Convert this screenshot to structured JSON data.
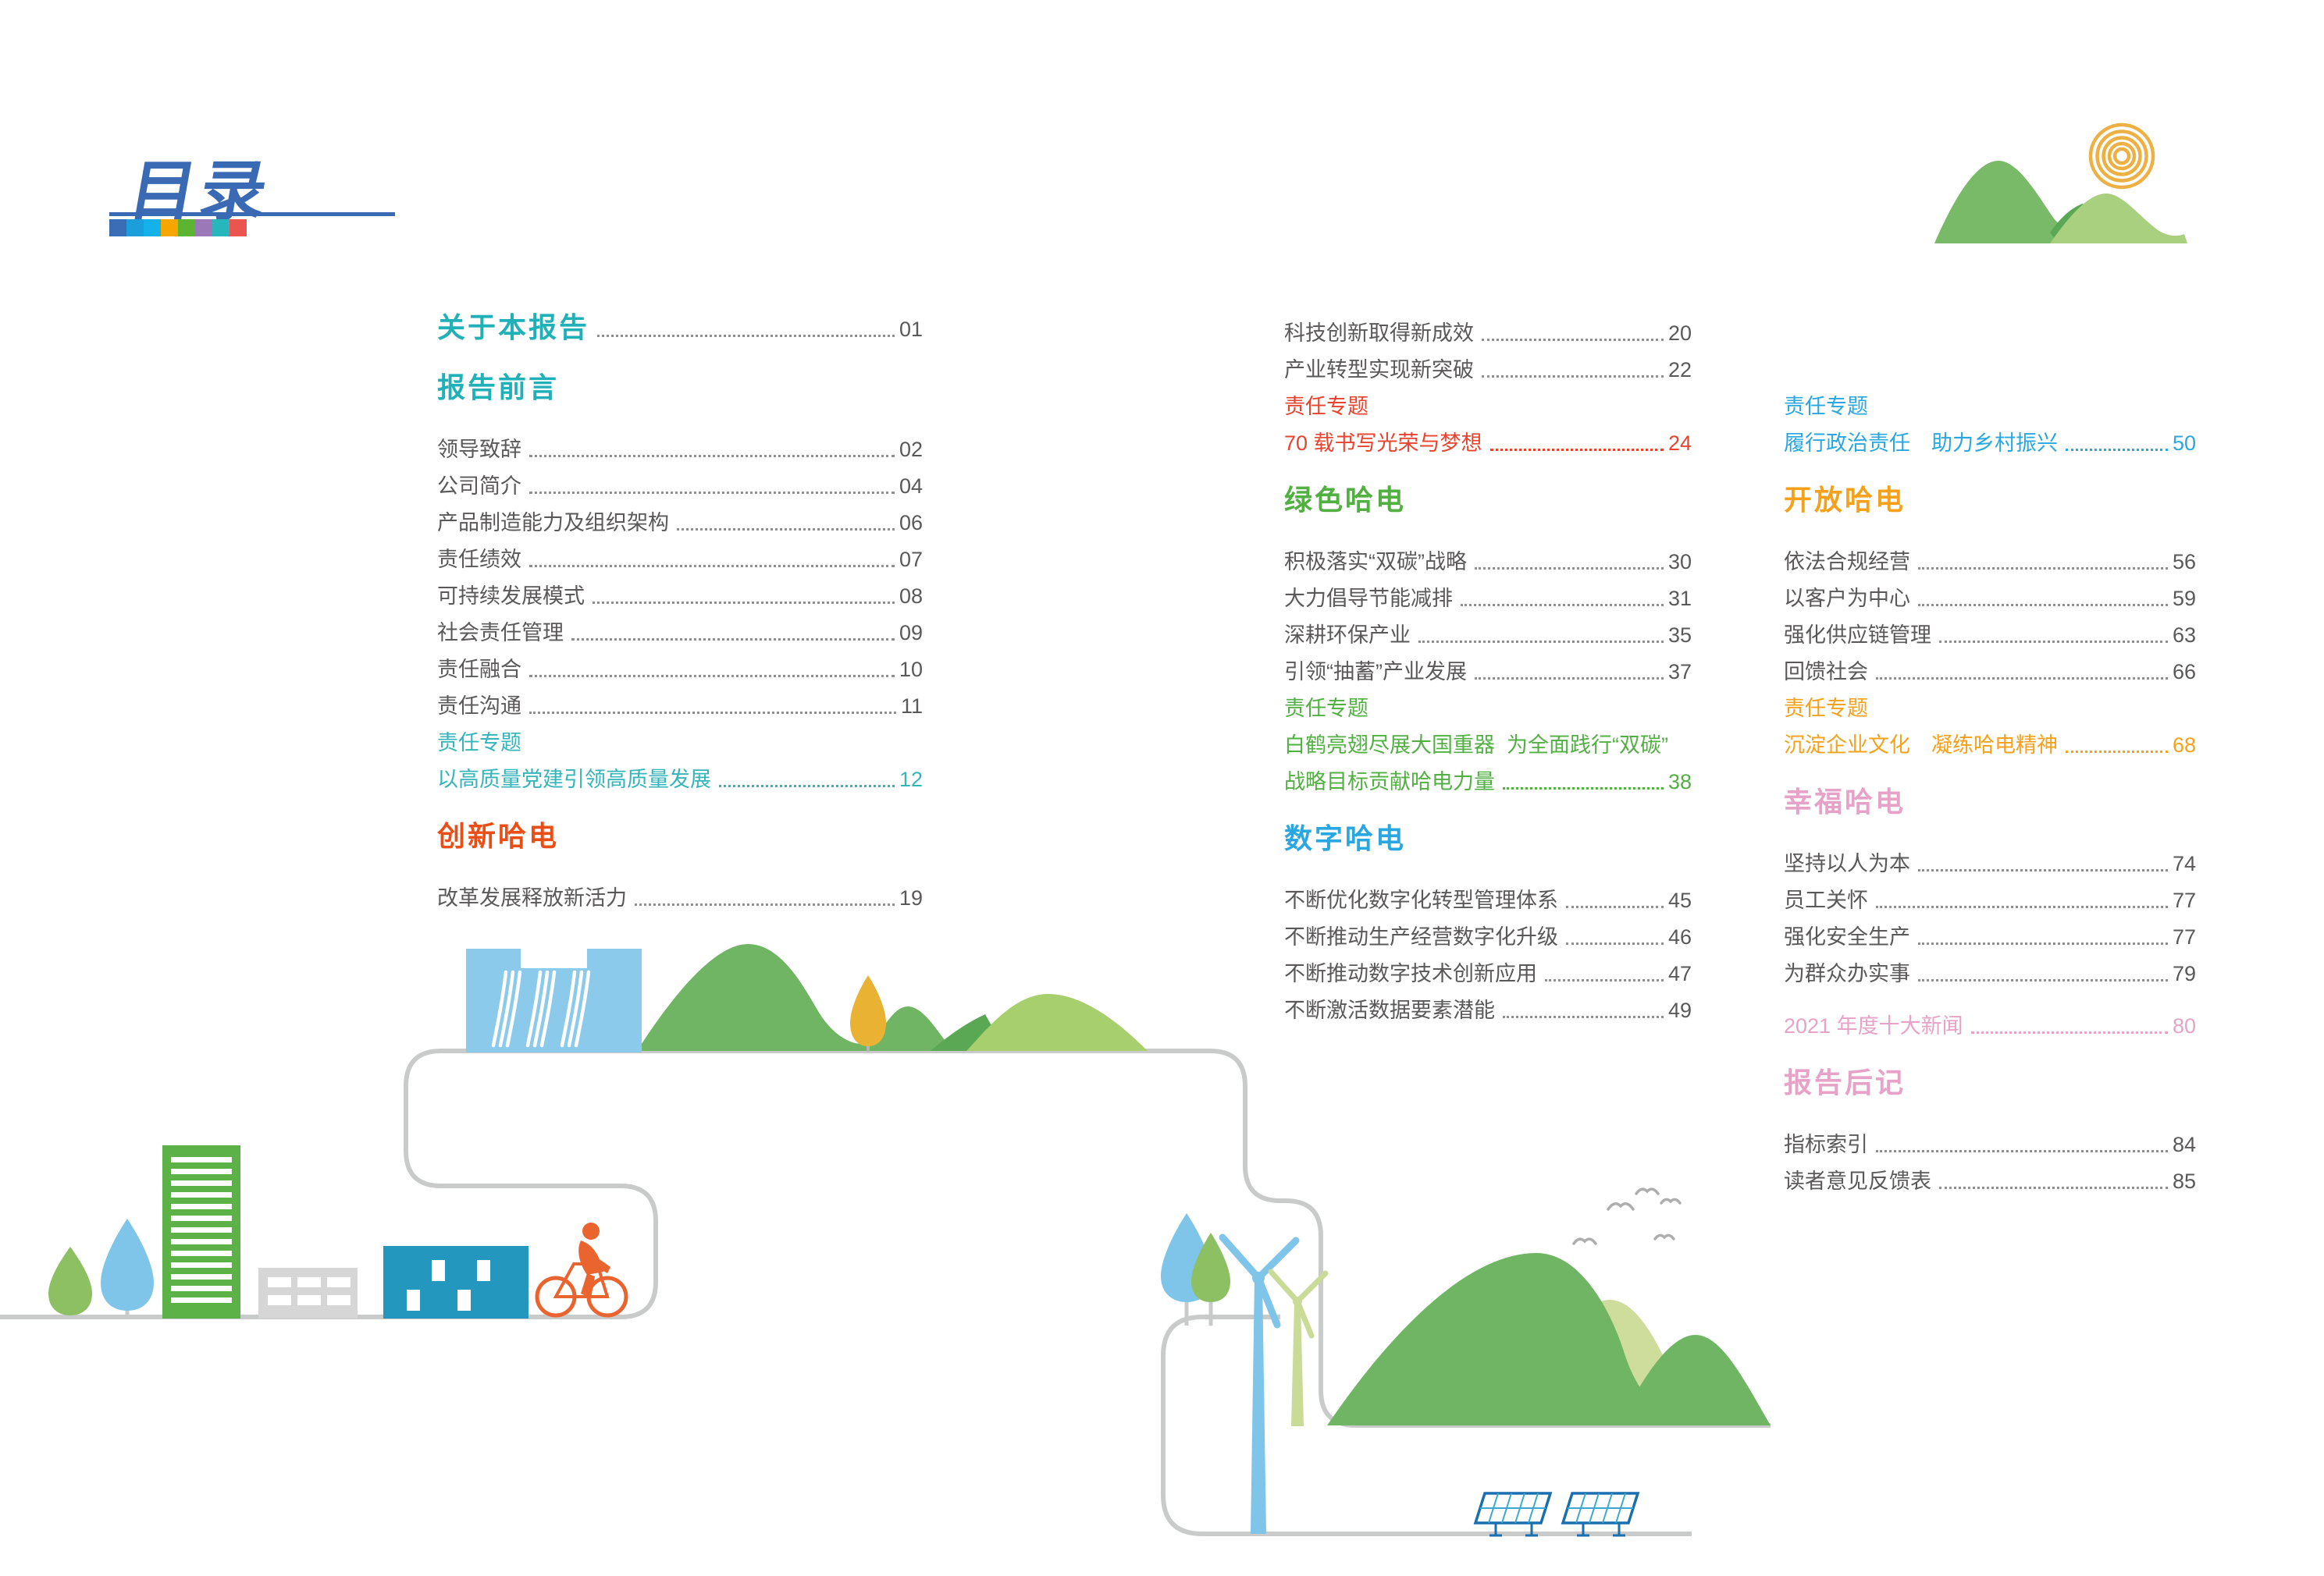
{
  "header": {
    "title": "目录",
    "underline_color": "#3a6ab3",
    "palette": [
      "#3a6db5",
      "#1b9ed9",
      "#14b2ea",
      "#f7a600",
      "#5cb531",
      "#9b79b8",
      "#26b7bc",
      "#ea5550"
    ]
  },
  "colors": {
    "teal": "#1fb1b7",
    "red": "#e94e17",
    "green": "#52b043",
    "blue": "#2aa7e0",
    "orange": "#f5a11b",
    "pink": "#e6a2c7",
    "body_text": "#5a5858"
  },
  "toc": {
    "columns": [
      {
        "blocks": [
          {
            "kind": "h",
            "text": "关于本报告",
            "color": "#1fb1b7",
            "page": "01"
          },
          {
            "kind": "h",
            "text": "报告前言",
            "color": "#1fb1b7"
          },
          {
            "kind": "i",
            "text": "领导致辞",
            "page": "02"
          },
          {
            "kind": "i",
            "text": "公司简介",
            "page": "04"
          },
          {
            "kind": "i",
            "text": "产品制造能力及组织架构",
            "page": "06"
          },
          {
            "kind": "i",
            "text": "责任绩效",
            "page": "07"
          },
          {
            "kind": "i",
            "text": "可持续发展模式",
            "page": "08"
          },
          {
            "kind": "i",
            "text": "社会责任管理",
            "page": "09"
          },
          {
            "kind": "i",
            "text": "责任融合",
            "page": "10"
          },
          {
            "kind": "i",
            "text": "责任沟通",
            "page": "11"
          },
          {
            "kind": "s",
            "text": "责任专题",
            "color": "#35b5ba"
          },
          {
            "kind": "c",
            "text": "以高质量党建引领高质量发展",
            "page": "12",
            "color": "#35b5ba"
          },
          {
            "kind": "h",
            "text": "创新哈电",
            "color": "#e94e17"
          },
          {
            "kind": "i",
            "text": "改革发展释放新活力",
            "page": "19"
          }
        ]
      },
      {
        "blocks": [
          {
            "kind": "i",
            "text": "科技创新取得新成效",
            "page": "20"
          },
          {
            "kind": "i",
            "text": "产业转型实现新突破",
            "page": "22"
          },
          {
            "kind": "s",
            "text": "责任专题",
            "color": "#e8432e"
          },
          {
            "kind": "c",
            "text": "70 载书写光荣与梦想",
            "page": "24",
            "color": "#e8432e"
          },
          {
            "kind": "h",
            "text": "绿色哈电",
            "color": "#52b043"
          },
          {
            "kind": "i",
            "text": "积极落实“双碳”战略",
            "page": "30"
          },
          {
            "kind": "i",
            "text": "大力倡导节能减排",
            "page": "31"
          },
          {
            "kind": "i",
            "text": "深耕环保产业",
            "page": "35"
          },
          {
            "kind": "i",
            "text": "引领“抽蓄”产业发展",
            "page": "37"
          },
          {
            "kind": "s",
            "text": "责任专题",
            "color": "#52b043"
          },
          {
            "kind": "s",
            "text": "白鹤亮翅尽展大国重器  为全面践行“双碳”",
            "color": "#52b043"
          },
          {
            "kind": "c",
            "text": "战略目标贡献哈电力量",
            "page": "38",
            "color": "#52b043"
          },
          {
            "kind": "h",
            "text": "数字哈电",
            "color": "#2aa7e0"
          },
          {
            "kind": "i",
            "text": "不断优化数字化转型管理体系",
            "page": "45"
          },
          {
            "kind": "i",
            "text": "不断推动生产经营数字化升级",
            "page": "46"
          },
          {
            "kind": "i",
            "text": "不断推动数字技术创新应用",
            "page": "47"
          },
          {
            "kind": "i",
            "text": "不断激活数据要素潜能",
            "page": "49"
          }
        ]
      },
      {
        "blocks": [
          {
            "kind": "s",
            "text": "责任专题",
            "color": "#2aa7e0"
          },
          {
            "kind": "c",
            "text": "履行政治责任　助力乡村振兴",
            "page": "50",
            "color": "#2aa7e0"
          },
          {
            "kind": "h",
            "text": "开放哈电",
            "color": "#f5a11b"
          },
          {
            "kind": "i",
            "text": "依法合规经营",
            "page": "56"
          },
          {
            "kind": "i",
            "text": "以客户为中心",
            "page": "59"
          },
          {
            "kind": "i",
            "text": "强化供应链管理",
            "page": "63"
          },
          {
            "kind": "i",
            "text": "回馈社会",
            "page": "66"
          },
          {
            "kind": "s",
            "text": "责任专题",
            "color": "#f5a11b"
          },
          {
            "kind": "c",
            "text": "沉淀企业文化　凝练哈电精神",
            "page": "68",
            "color": "#f5a11b"
          },
          {
            "kind": "h",
            "text": "幸福哈电",
            "color": "#e6a2c7"
          },
          {
            "kind": "i",
            "text": "坚持以人为本",
            "page": "74"
          },
          {
            "kind": "i",
            "text": "员工关怀",
            "page": "77"
          },
          {
            "kind": "i",
            "text": "强化安全生产",
            "page": "77"
          },
          {
            "kind": "i",
            "text": "为群众办实事",
            "page": "79"
          },
          {
            "kind": "c",
            "text": "2021 年度十大新闻",
            "page": "80",
            "color": "#e6a2c7",
            "gap": true
          },
          {
            "kind": "h",
            "text": "报告后记",
            "color": "#e6a2c7"
          },
          {
            "kind": "i",
            "text": "指标索引",
            "page": "84"
          },
          {
            "kind": "i",
            "text": "读者意见反馈表",
            "page": "85"
          }
        ]
      }
    ]
  }
}
